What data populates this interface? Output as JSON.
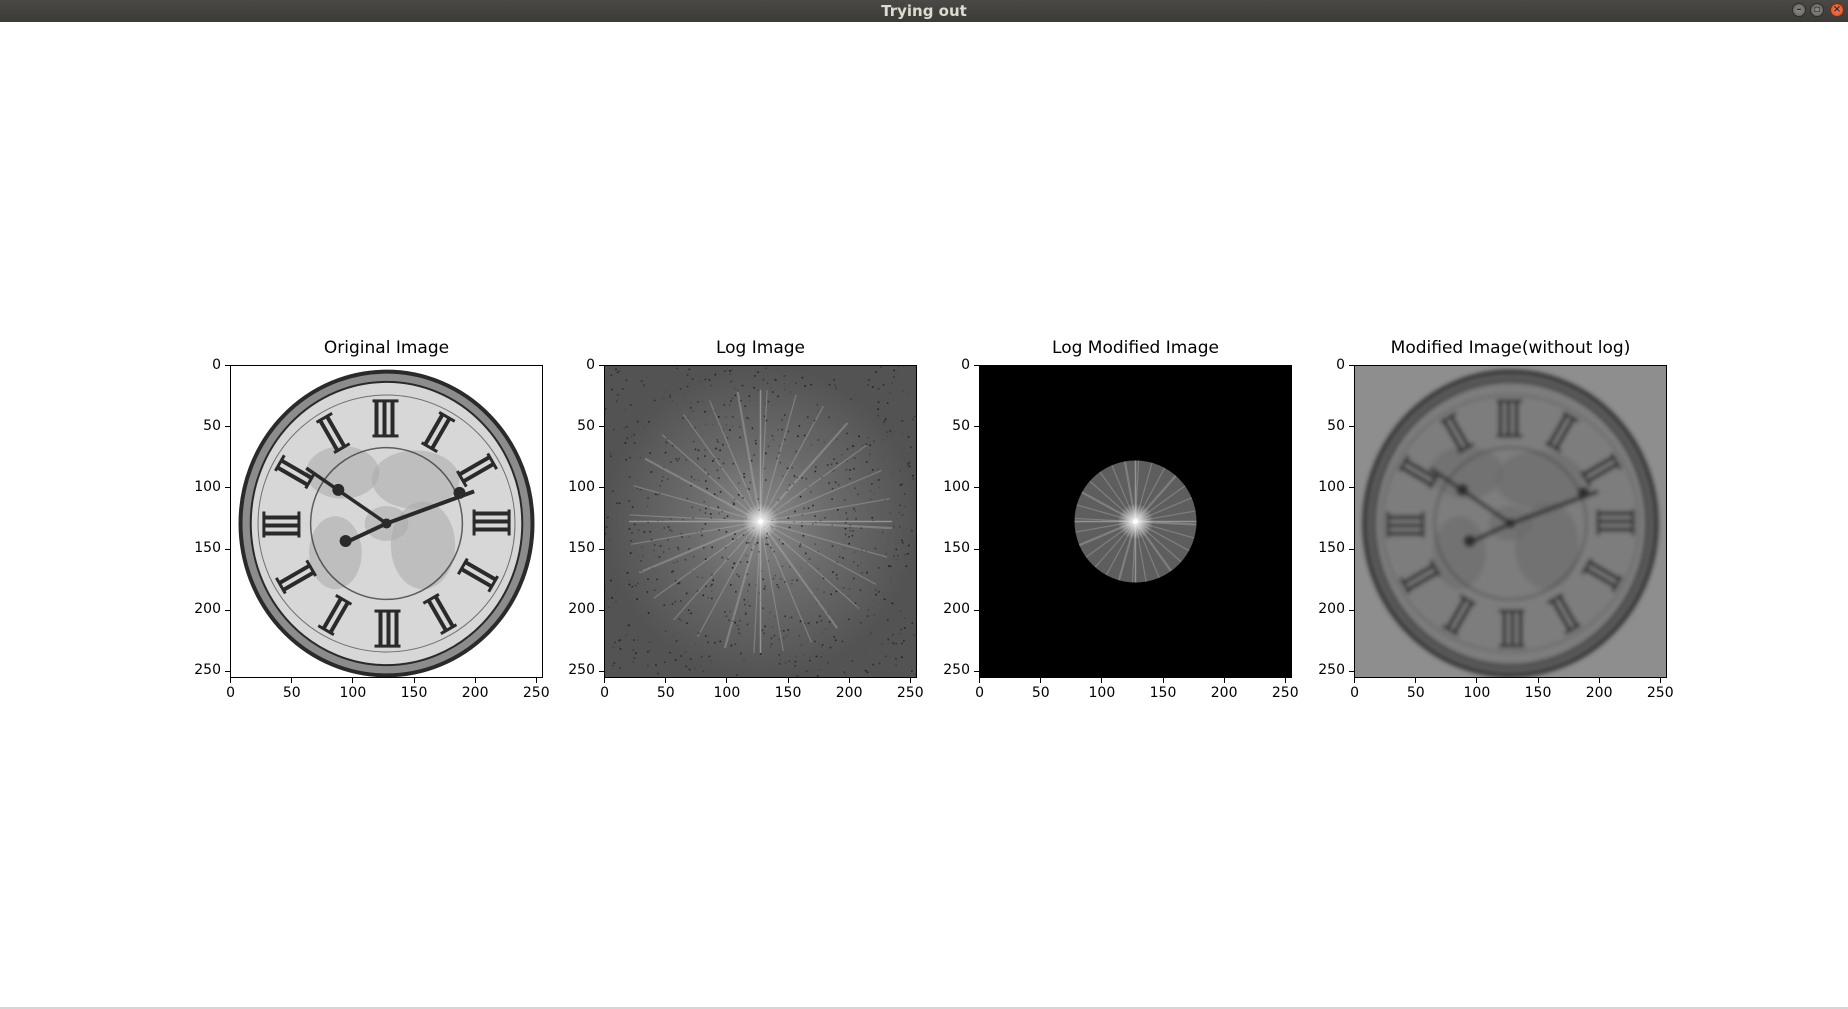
{
  "window": {
    "title": "Trying out",
    "buttons": [
      "minimize",
      "maximize",
      "close"
    ]
  },
  "chart_data": [
    {
      "type": "image",
      "title": "Original Image",
      "content": "grayscale clock face with roman numerals and world map background",
      "xlim": [
        0,
        255
      ],
      "ylim": [
        255,
        0
      ],
      "xticks": [
        "0",
        "50",
        "100",
        "150",
        "200",
        "250"
      ],
      "yticks": [
        "0",
        "50",
        "100",
        "150",
        "200",
        "250"
      ]
    },
    {
      "type": "image",
      "title": "Log Image",
      "content": "log-magnitude Fourier spectrum, bright center with radial streaks",
      "xlim": [
        0,
        255
      ],
      "ylim": [
        255,
        0
      ],
      "xticks": [
        "0",
        "50",
        "100",
        "150",
        "200",
        "250"
      ],
      "yticks": [
        "0",
        "50",
        "100",
        "150",
        "200",
        "250"
      ]
    },
    {
      "type": "image",
      "title": "Log Modified Image",
      "content": "spectrum masked to central disk on black background",
      "xlim": [
        0,
        255
      ],
      "ylim": [
        255,
        0
      ],
      "xticks": [
        "0",
        "50",
        "100",
        "150",
        "200",
        "250"
      ],
      "yticks": [
        "0",
        "50",
        "100",
        "150",
        "200",
        "250"
      ]
    },
    {
      "type": "image",
      "title": "Modified Image(without log)",
      "content": "low-pass filtered, blurred clock image",
      "xlim": [
        0,
        255
      ],
      "ylim": [
        255,
        0
      ],
      "xticks": [
        "0",
        "50",
        "100",
        "150",
        "200",
        "250"
      ],
      "yticks": [
        "0",
        "50",
        "100",
        "150",
        "200",
        "250"
      ]
    }
  ],
  "icons": {
    "minimize": "minimize-icon",
    "maximize": "maximize-icon",
    "close": "close-icon"
  },
  "colors": {
    "titlebar": "#3f3e3a",
    "titlebar_text": "#dfdbd2",
    "close": "#e05a2b",
    "mask_background": "#000000"
  }
}
